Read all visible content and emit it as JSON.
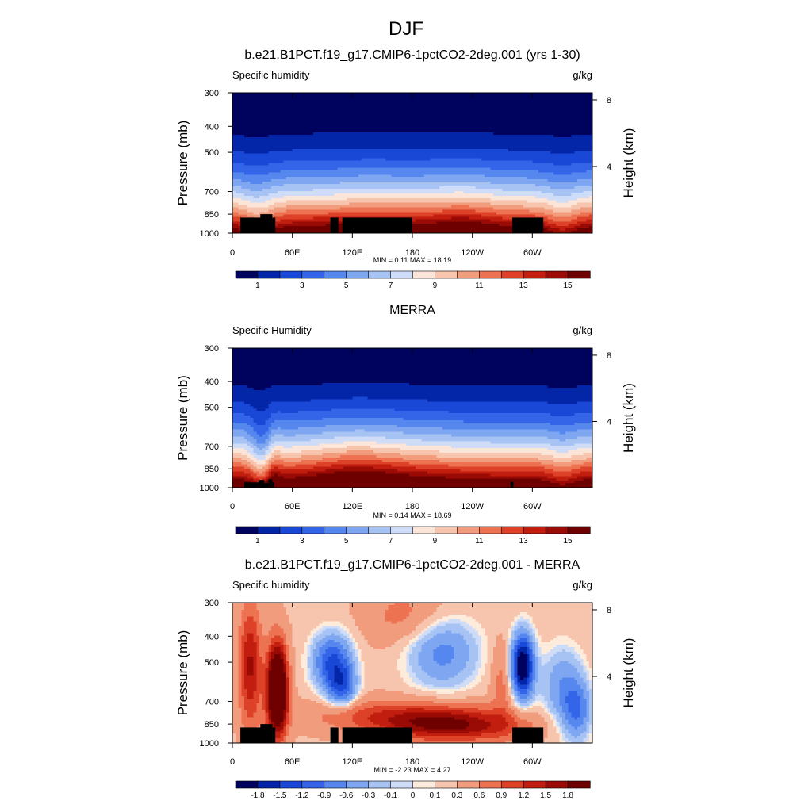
{
  "figure": {
    "title": "DJF"
  },
  "colors": {
    "abs_scale": [
      "#00035e",
      "#0325a8",
      "#1947d6",
      "#3465e8",
      "#5687ee",
      "#7fa6f1",
      "#a7c3f4",
      "#cfdcf8",
      "#fbe4d8",
      "#f7c4ae",
      "#f29c7e",
      "#ec7252",
      "#dd4128",
      "#c11e10",
      "#9b0b05",
      "#6e0000"
    ],
    "diff_scale": [
      "#00035e",
      "#0325a8",
      "#1947d6",
      "#3465e8",
      "#5687ee",
      "#7fa6f1",
      "#a7c3f4",
      "#cfdcf8",
      "#fdebdc",
      "#f7c4ae",
      "#f29c7e",
      "#ec7252",
      "#dd4128",
      "#c11e10",
      "#9b0b05",
      "#6e0000"
    ],
    "land": "#000000"
  },
  "chart_data": [
    {
      "type": "heatmap",
      "title": "b.e21.B1PCT.f19_g17.CMIP6-1pctCO2-2deg.001 (yrs 1-30)",
      "left_label": "Specific humidity",
      "right_label": "g/kg",
      "ylabel": "Pressure (mb)",
      "y2label": "Height (km)",
      "x_ticks": [
        "0",
        "60E",
        "120E",
        "180",
        "120W",
        "60W"
      ],
      "x_tick_values": [
        0,
        60,
        120,
        180,
        240,
        300
      ],
      "xlim": [
        0,
        360
      ],
      "y_ticks": [
        "300",
        "400",
        "500",
        "700",
        "850",
        "1000"
      ],
      "y_tick_values": [
        300,
        400,
        500,
        700,
        850,
        1000
      ],
      "ylim": [
        1000,
        300
      ],
      "y2_ticks": [
        "8",
        "4"
      ],
      "y2_tick_values": [
        8,
        4
      ],
      "stats": "MIN =   0.11  MAX =  18.19",
      "colorbar_labels": [
        "1",
        "3",
        "5",
        "7",
        "9",
        "11",
        "13",
        "15"
      ],
      "colorbar_levels": [
        1,
        2,
        3,
        4,
        5,
        6,
        7,
        8,
        9,
        10,
        11,
        12,
        13,
        14,
        15
      ],
      "min": 0.11,
      "max": 18.19
    },
    {
      "type": "heatmap",
      "title": "MERRA",
      "left_label": "Specific Humidity",
      "right_label": "g/kg",
      "ylabel": "Pressure (mb)",
      "y2label": "Height (km)",
      "x_ticks": [
        "0",
        "60E",
        "120E",
        "180",
        "120W",
        "60W"
      ],
      "x_tick_values": [
        0,
        60,
        120,
        180,
        240,
        300
      ],
      "xlim": [
        0,
        360
      ],
      "y_ticks": [
        "300",
        "400",
        "500",
        "700",
        "850",
        "1000"
      ],
      "y_tick_values": [
        300,
        400,
        500,
        700,
        850,
        1000
      ],
      "ylim": [
        1000,
        300
      ],
      "y2_ticks": [
        "8",
        "4"
      ],
      "y2_tick_values": [
        8,
        4
      ],
      "stats": "MIN =   0.14  MAX =  18.69",
      "colorbar_labels": [
        "1",
        "3",
        "5",
        "7",
        "9",
        "11",
        "13",
        "15"
      ],
      "colorbar_levels": [
        1,
        2,
        3,
        4,
        5,
        6,
        7,
        8,
        9,
        10,
        11,
        12,
        13,
        14,
        15
      ],
      "min": 0.14,
      "max": 18.69
    },
    {
      "type": "heatmap",
      "title": "b.e21.B1PCT.f19_g17.CMIP6-1pctCO2-2deg.001 - MERRA",
      "left_label": "Specific humidity",
      "right_label": "g/kg",
      "ylabel": "Pressure (mb)",
      "y2label": "Height (km)",
      "x_ticks": [
        "0",
        "60E",
        "120E",
        "180",
        "120W",
        "60W"
      ],
      "x_tick_values": [
        0,
        60,
        120,
        180,
        240,
        300
      ],
      "xlim": [
        0,
        360
      ],
      "y_ticks": [
        "300",
        "400",
        "500",
        "700",
        "850",
        "1000"
      ],
      "y_tick_values": [
        300,
        400,
        500,
        700,
        850,
        1000
      ],
      "ylim": [
        1000,
        300
      ],
      "y2_ticks": [
        "8",
        "4"
      ],
      "y2_tick_values": [
        8,
        4
      ],
      "stats": "MIN =  -2.23  MAX =   4.27",
      "colorbar_labels": [
        "-1.8",
        "-1.5",
        "-1.2",
        "-0.9",
        "-0.6",
        "-0.3",
        "-0.1",
        "0",
        "0.1",
        "0.3",
        "0.6",
        "0.9",
        "1.2",
        "1.5",
        "1.8"
      ],
      "colorbar_levels": [
        -1.8,
        -1.5,
        -1.2,
        -0.9,
        -0.6,
        -0.3,
        -0.1,
        0,
        0.1,
        0.3,
        0.6,
        0.9,
        1.2,
        1.5,
        1.8
      ],
      "min": -2.23,
      "max": 4.27
    }
  ]
}
